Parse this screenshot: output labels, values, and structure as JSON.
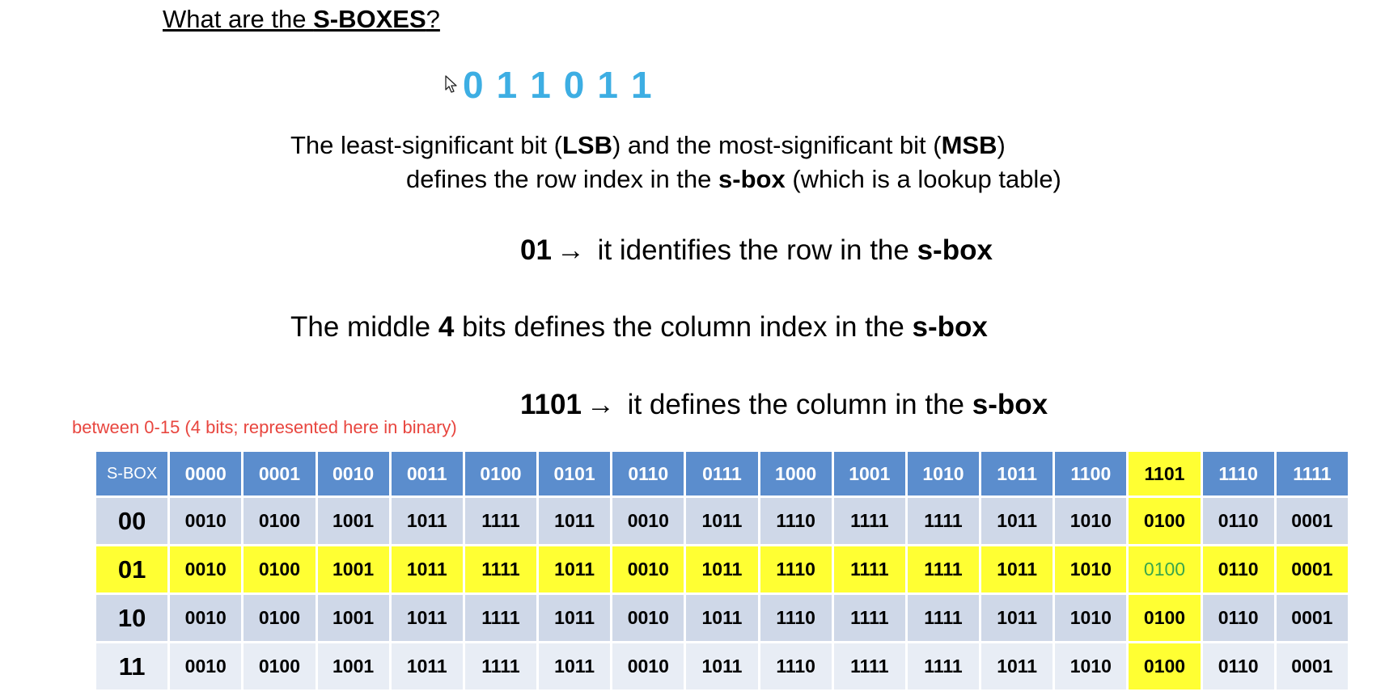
{
  "title": {
    "prefix": "What are the ",
    "bold": "S-BOXES",
    "suffix": "?"
  },
  "input_bits": [
    "0",
    "1",
    "1",
    "0",
    "1",
    "1"
  ],
  "explain": {
    "line1": {
      "a": "The least-significant bit (",
      "b": "LSB",
      "c": ") and the most-significant bit (",
      "d": "MSB",
      "e": ")"
    },
    "line2": {
      "a": "defines the row index in the ",
      "b": "s-box",
      "c": " (which is a lookup table)"
    }
  },
  "row_rule": {
    "bits": "01",
    "arrow": "→",
    "text": " it identifies the row in the ",
    "bold": "s-box"
  },
  "middle_rule": {
    "a": "The middle ",
    "b": "4",
    "c": " bits defines the column index in the ",
    "d": "s-box"
  },
  "col_rule": {
    "bits": "1101",
    "arrow": "→",
    "text": " it defines the column in the ",
    "bold": "s-box"
  },
  "note": "between 0-15 (4 bits; represented here in binary)",
  "colors": {
    "header": "#5b8dcd",
    "highlight": "#ffff33",
    "bits": "#3daee3",
    "note": "#e8463f",
    "target": "#3aa64b"
  },
  "table": {
    "corner": "S-BOX",
    "columns": [
      "0000",
      "0001",
      "0010",
      "0011",
      "0100",
      "0101",
      "0110",
      "0111",
      "1000",
      "1001",
      "1010",
      "1011",
      "1100",
      "1101",
      "1110",
      "1111"
    ],
    "highlight_column": 13,
    "highlight_row": 1,
    "rows": [
      {
        "label": "00",
        "cells": [
          "0010",
          "0100",
          "1001",
          "1011",
          "1111",
          "1011",
          "0010",
          "1011",
          "1110",
          "1111",
          "1111",
          "1011",
          "1010",
          "0100",
          "0110",
          "0001"
        ]
      },
      {
        "label": "01",
        "cells": [
          "0010",
          "0100",
          "1001",
          "1011",
          "1111",
          "1011",
          "0010",
          "1011",
          "1110",
          "1111",
          "1111",
          "1011",
          "1010",
          "0100",
          "0110",
          "0001"
        ]
      },
      {
        "label": "10",
        "cells": [
          "0010",
          "0100",
          "1001",
          "1011",
          "1111",
          "1011",
          "0010",
          "1011",
          "1110",
          "1111",
          "1111",
          "1011",
          "1010",
          "0100",
          "0110",
          "0001"
        ]
      },
      {
        "label": "11",
        "cells": [
          "0010",
          "0100",
          "1001",
          "1011",
          "1111",
          "1011",
          "0010",
          "1011",
          "1110",
          "1111",
          "1111",
          "1011",
          "1010",
          "0100",
          "0110",
          "0001"
        ]
      }
    ]
  }
}
